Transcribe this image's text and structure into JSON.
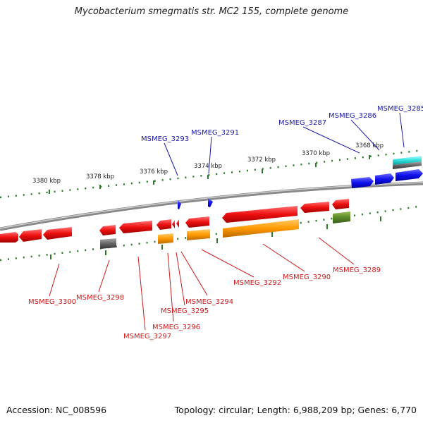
{
  "header": {
    "title": "Mycobacterium smegmatis str. MC2 155, complete genome"
  },
  "footer": {
    "accession": "Accession: NC_008596",
    "summary": "Topology: circular; Length: 6,988,209 bp; Genes: 6,770"
  },
  "colors": {
    "forward_gene": "#1010ee",
    "reverse_gene": "#ee1010",
    "forward_label": "#1a1aa8",
    "reverse_label": "#cc1a1a",
    "backbone": "#888888",
    "tick": "#2a7a2a",
    "trna": "#ff9900",
    "rrna_cyan": "#33dddd",
    "misc_gray": "#666666",
    "misc_green": "#5a8a2a"
  },
  "scale_labels": [
    "3380 kbp",
    "3378 kbp",
    "3376 kbp",
    "3374 kbp",
    "3372 kbp",
    "3370 kbp",
    "3368 kbp"
  ],
  "forward_labels": [
    "MSMEG_3293",
    "MSMEG_3291",
    "MSMEG_3287",
    "MSMEG_3286",
    "MSMEG_3285"
  ],
  "reverse_labels": [
    "MSMEG_3300",
    "MSMEG_3298",
    "MSMEG_3297",
    "MSMEG_3296",
    "MSMEG_3295",
    "MSMEG_3294",
    "MSMEG_3292",
    "MSMEG_3290",
    "MSMEG_3289"
  ]
}
